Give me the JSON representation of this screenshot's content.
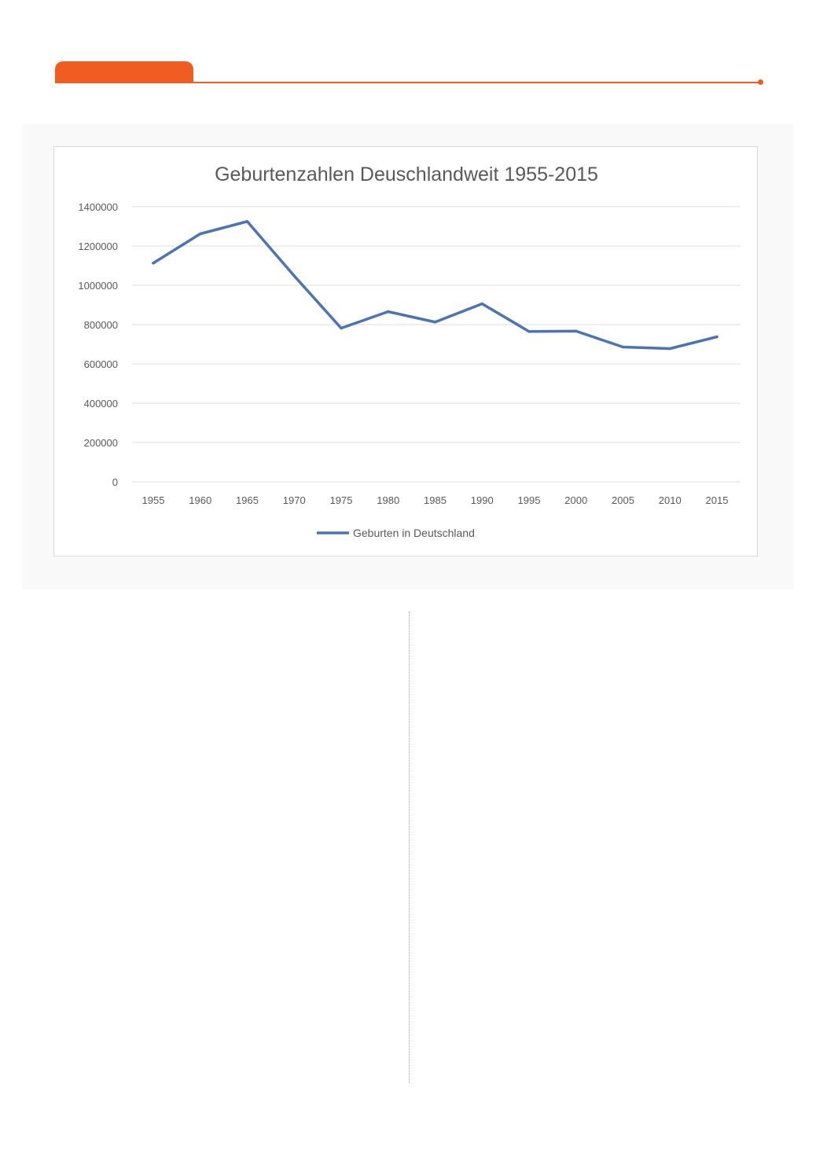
{
  "colors": {
    "accent": "#ef5d22",
    "series": "#4a74b4",
    "gridline": "#dcdcdc",
    "axis_text": "#595959",
    "title_text": "#595959"
  },
  "chart_data": {
    "type": "line",
    "title": "Geburtenzahlen Deuschlandweit 1955-2015",
    "xlabel": "",
    "ylabel": "",
    "categories": [
      "1955",
      "1960",
      "1965",
      "1970",
      "1975",
      "1980",
      "1985",
      "1990",
      "1995",
      "2000",
      "2005",
      "2010",
      "2015"
    ],
    "y_ticks": [
      "0",
      "200000",
      "400000",
      "600000",
      "800000",
      "1000000",
      "1200000",
      "1400000"
    ],
    "ylim": [
      0,
      1400000
    ],
    "grid": true,
    "legend_position": "bottom",
    "series": [
      {
        "name": "Geburten in Deutschland",
        "values": [
          1113000,
          1262000,
          1325000,
          1048000,
          782000,
          866000,
          813000,
          906000,
          765000,
          767000,
          686000,
          678000,
          738000
        ]
      }
    ]
  }
}
